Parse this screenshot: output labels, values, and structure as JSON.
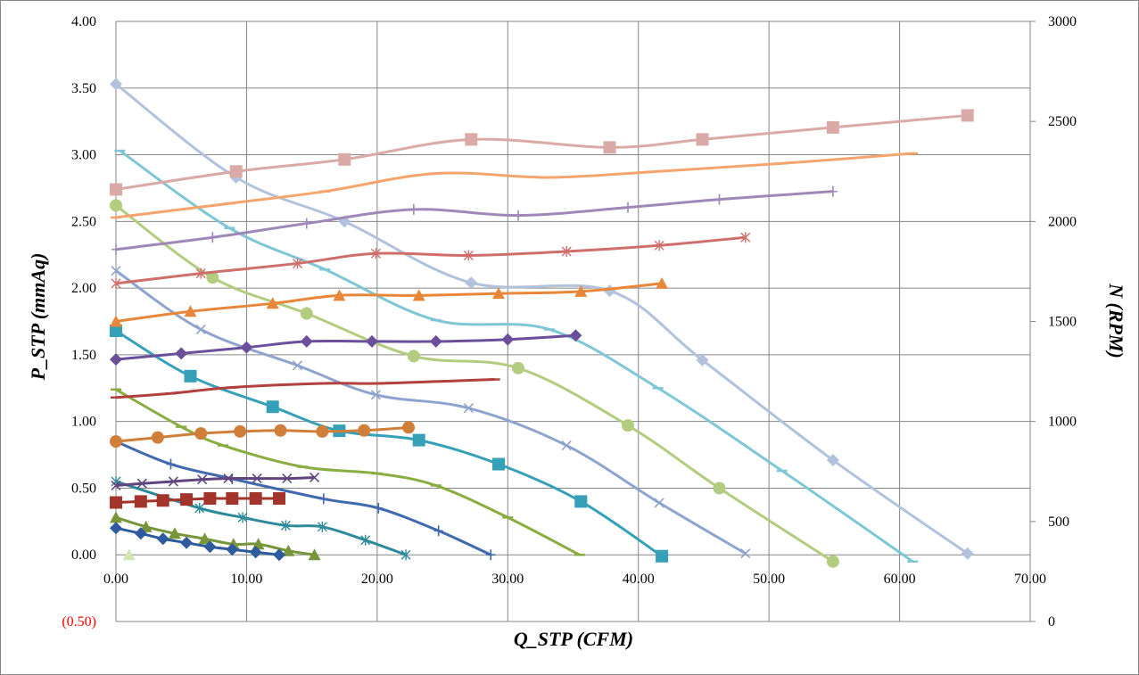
{
  "chart_data": {
    "type": "line",
    "title": "",
    "xlabel": "Q_STP (CFM)",
    "ylabel": "P_STP (mmAq)",
    "y2label": "N (RPM)",
    "xlim": [
      0,
      70
    ],
    "ylim": [
      -0.5,
      4.0
    ],
    "y2lim": [
      0,
      3000
    ],
    "x_ticks": [
      "0.00",
      "10.00",
      "20.00",
      "30.00",
      "40.00",
      "50.00",
      "60.00",
      "70.00"
    ],
    "y_ticks": [
      "4.00",
      "3.50",
      "3.00",
      "2.50",
      "2.00",
      "1.50",
      "1.00",
      "0.50",
      "0.00",
      "(0.50)"
    ],
    "y2_ticks": [
      "3000",
      "2500",
      "2000",
      "1500",
      "1000",
      "500",
      "0"
    ],
    "grid": true,
    "legend": "none",
    "series": [
      {
        "color": "#b3c2dc",
        "marker": "diamond",
        "axis": "left",
        "x": [
          0,
          9.2,
          17.5,
          27.2,
          37.8,
          44.9,
          54.9,
          65.2
        ],
        "y": [
          3.53,
          2.83,
          2.5,
          2.04,
          1.98,
          1.46,
          0.71,
          0.01
        ]
      },
      {
        "color": "#7fc6d6",
        "marker": "dash",
        "axis": "left",
        "x": [
          0.3,
          8.7,
          16.0,
          24.5,
          33.2,
          41.5,
          51.0,
          61.0
        ],
        "y": [
          3.03,
          2.45,
          2.14,
          1.76,
          1.69,
          1.25,
          0.63,
          -0.05
        ]
      },
      {
        "color": "#b3cc7f",
        "marker": "circle",
        "axis": "left",
        "x": [
          0,
          7.4,
          14.6,
          22.8,
          30.8,
          39.2,
          46.2,
          54.9
        ],
        "y": [
          2.62,
          2.08,
          1.81,
          1.49,
          1.4,
          0.97,
          0.5,
          -0.05
        ]
      },
      {
        "color": "#8ea3cd",
        "marker": "cross",
        "axis": "left",
        "x": [
          0,
          6.5,
          13.9,
          19.9,
          27.0,
          34.5,
          41.6,
          48.2
        ],
        "y": [
          2.13,
          1.69,
          1.42,
          1.2,
          1.1,
          0.82,
          0.39,
          0.01
        ]
      },
      {
        "color": "#35a0b7",
        "marker": "square",
        "axis": "left",
        "x": [
          0,
          5.7,
          12.0,
          17.1,
          23.2,
          29.3,
          35.6,
          41.8
        ],
        "y": [
          1.68,
          1.34,
          1.11,
          0.93,
          0.86,
          0.68,
          0.4,
          -0.01
        ]
      },
      {
        "color": "#8aad42",
        "marker": "dash",
        "axis": "left",
        "x": [
          0,
          5.0,
          8.2,
          14.3,
          20.0,
          24.5,
          30.0,
          35.5
        ],
        "y": [
          1.24,
          0.96,
          0.82,
          0.66,
          0.61,
          0.52,
          0.28,
          0.0
        ]
      },
      {
        "color": "#4169ad",
        "marker": "plus",
        "axis": "left",
        "x": [
          0,
          4.2,
          8.9,
          15.9,
          20.1,
          24.7,
          28.7
        ],
        "y": [
          0.85,
          0.68,
          0.57,
          0.42,
          0.35,
          0.18,
          0.0
        ]
      },
      {
        "color": "#2e8a9a",
        "marker": "star",
        "axis": "left",
        "x": [
          0,
          6.4,
          9.7,
          13.0,
          15.8,
          19.1,
          22.2
        ],
        "y": [
          0.55,
          0.35,
          0.28,
          0.22,
          0.21,
          0.11,
          0.0
        ]
      },
      {
        "color": "#77963a",
        "marker": "triangle",
        "axis": "left",
        "x": [
          0,
          2.3,
          4.5,
          6.8,
          9.0,
          10.9,
          13.2,
          15.2
        ],
        "y": [
          0.28,
          0.21,
          0.16,
          0.12,
          0.08,
          0.08,
          0.03,
          0.0
        ]
      },
      {
        "color": "#2e5a9e",
        "marker": "diamond",
        "axis": "left",
        "x": [
          0,
          1.9,
          3.6,
          5.4,
          7.2,
          8.9,
          10.7,
          12.5
        ],
        "y": [
          0.2,
          0.16,
          0.12,
          0.09,
          0.06,
          0.04,
          0.02,
          0.0
        ]
      },
      {
        "color": "#d9aaa7",
        "marker": "square",
        "axis": "right",
        "x": [
          0,
          9.2,
          17.5,
          27.2,
          37.8,
          44.9,
          54.9,
          65.2
        ],
        "y": [
          2160,
          2250,
          2310,
          2410,
          2370,
          2410,
          2470,
          2530
        ]
      },
      {
        "color": "#f5a46d",
        "marker": "dash",
        "axis": "right",
        "x": [
          0,
          8.7,
          16.0,
          24.5,
          33.2,
          41.5,
          51.0,
          61.0
        ],
        "y": [
          2020,
          2090,
          2150,
          2240,
          2220,
          2250,
          2290,
          2340
        ]
      },
      {
        "color": "#9f88b8",
        "marker": "plus",
        "axis": "right",
        "x": [
          0,
          7.4,
          14.6,
          22.8,
          30.8,
          39.2,
          46.2,
          54.9
        ],
        "y": [
          1860,
          1920,
          1990,
          2060,
          2030,
          2070,
          2110,
          2150
        ]
      },
      {
        "color": "#cf6f6c",
        "marker": "star",
        "axis": "right",
        "x": [
          0,
          6.5,
          13.9,
          19.9,
          27.0,
          34.5,
          41.6,
          48.2
        ],
        "y": [
          1690,
          1740,
          1790,
          1840,
          1830,
          1850,
          1880,
          1920
        ]
      },
      {
        "color": "#e8873a",
        "marker": "triangle",
        "axis": "right",
        "x": [
          0,
          5.7,
          12.0,
          17.1,
          23.2,
          29.3,
          35.6,
          41.8
        ],
        "y": [
          1500,
          1550,
          1590,
          1630,
          1630,
          1640,
          1650,
          1690
        ]
      },
      {
        "color": "#6b4f9a",
        "marker": "diamond",
        "axis": "right",
        "x": [
          0,
          5.0,
          10.0,
          14.6,
          19.6,
          24.5,
          30.0,
          35.2
        ],
        "y": [
          1310,
          1340,
          1370,
          1400,
          1400,
          1400,
          1410,
          1430
        ]
      },
      {
        "color": "#b0413e",
        "marker": "dash",
        "axis": "right",
        "x": [
          0,
          4.2,
          8.9,
          15.9,
          20.1,
          24.7,
          29.0
        ],
        "y": [
          1120,
          1140,
          1170,
          1190,
          1190,
          1200,
          1210
        ]
      },
      {
        "color": "#d07f3a",
        "marker": "circle",
        "axis": "right",
        "x": [
          0,
          3.2,
          6.5,
          9.5,
          12.6,
          15.8,
          19.0,
          22.4
        ],
        "y": [
          900,
          920,
          940,
          950,
          955,
          950,
          955,
          970
        ]
      },
      {
        "color": "#60457d",
        "marker": "cross",
        "axis": "right",
        "x": [
          0,
          2.0,
          4.4,
          6.6,
          8.6,
          10.8,
          13.1,
          15.2
        ],
        "y": [
          680,
          690,
          700,
          710,
          715,
          715,
          715,
          720
        ]
      },
      {
        "color": "#a3342c",
        "marker": "square",
        "axis": "right",
        "x": [
          0,
          1.9,
          3.6,
          5.4,
          7.2,
          8.9,
          10.7,
          12.5
        ],
        "y": [
          595,
          600,
          605,
          610,
          615,
          615,
          615,
          615
        ]
      }
    ],
    "extra_points": [
      {
        "color": "#d4e6b8",
        "marker": "triangle",
        "axis": "left",
        "x": 1.0,
        "y": 0.0
      }
    ]
  }
}
